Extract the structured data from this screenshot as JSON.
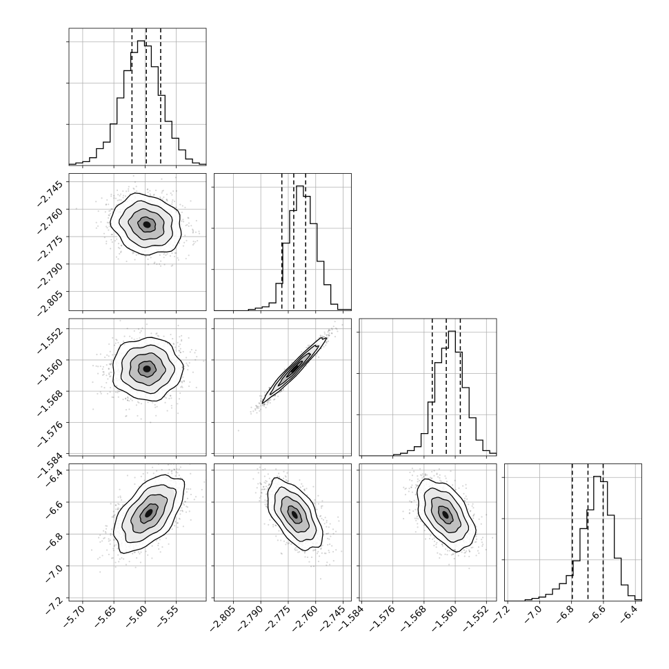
{
  "chart_data": {
    "type": "corner",
    "n_params": 4,
    "params": [
      {
        "ticks": [
          -5.7,
          -5.65,
          -5.6,
          -5.55
        ],
        "tick_labels": [
          "−5.70",
          "−5.65",
          "−5.60",
          "−5.55"
        ],
        "range": [
          -5.722,
          -5.502
        ]
      },
      {
        "ticks": [
          -2.805,
          -2.79,
          -2.775,
          -2.76,
          -2.745
        ],
        "tick_labels": [
          "−2.805",
          "−2.790",
          "−2.775",
          "−2.760",
          "−2.745"
        ],
        "range": [
          -2.8155,
          -2.7405
        ]
      },
      {
        "ticks": [
          -1.584,
          -1.576,
          -1.568,
          -1.56,
          -1.552
        ],
        "tick_labels": [
          "−1.584",
          "−1.576",
          "−1.568",
          "−1.560",
          "−1.552"
        ],
        "range": [
          -1.5846,
          -1.5494
        ]
      },
      {
        "ticks": [
          -7.2,
          -7.0,
          -6.8,
          -6.6,
          -6.4
        ],
        "tick_labels": [
          "−7.2",
          "−7.0",
          "−6.8",
          "−6.6",
          "−6.4"
        ],
        "range": [
          -7.22,
          -6.36
        ]
      }
    ],
    "histograms": [
      {
        "counts": [
          1,
          2,
          3,
          6,
          13,
          18,
          32,
          52,
          73,
          87,
          96,
          92,
          76,
          54,
          34,
          21,
          12,
          5,
          2,
          1
        ],
        "quantiles": [
          -5.621,
          -5.598,
          -5.575
        ]
      },
      {
        "counts": [
          0,
          0,
          0,
          0,
          0,
          1,
          2,
          3,
          6,
          21,
          52,
          77,
          96,
          88,
          67,
          38,
          20,
          5,
          1,
          1
        ],
        "quantiles": [
          -2.7785,
          -2.772,
          -2.7655
        ]
      },
      {
        "counts": [
          0,
          0,
          0,
          0,
          0,
          1,
          2,
          4,
          7,
          17,
          41,
          71,
          82,
          95,
          79,
          52,
          29,
          12,
          4,
          2
        ],
        "quantiles": [
          -1.5659,
          -1.5623,
          -1.5587
        ]
      },
      {
        "counts": [
          0,
          0,
          0,
          1,
          2,
          3,
          5,
          9,
          13,
          19,
          30,
          54,
          68,
          93,
          89,
          64,
          32,
          12,
          4,
          1
        ],
        "quantiles": [
          -6.795,
          -6.697,
          -6.602
        ]
      }
    ],
    "pairs": [
      {
        "x_param": 0,
        "y_param": 1,
        "mean": [
          -5.597,
          -2.7685
        ],
        "sd": [
          0.028,
          0.0082
        ],
        "corr": -0.15
      },
      {
        "x_param": 0,
        "y_param": 2,
        "mean": [
          -5.597,
          -1.5623
        ],
        "sd": [
          0.028,
          0.004
        ],
        "corr": 0.0
      },
      {
        "x_param": 1,
        "y_param": 2,
        "mean": [
          -2.7715,
          -1.5623
        ],
        "sd": [
          0.0085,
          0.0041
        ],
        "corr": 0.97
      },
      {
        "x_param": 0,
        "y_param": 3,
        "mean": [
          -5.594,
          -6.67
        ],
        "sd": [
          0.028,
          0.12
        ],
        "corr": 0.55
      },
      {
        "x_param": 1,
        "y_param": 3,
        "mean": [
          -2.7715,
          -6.68
        ],
        "sd": [
          0.0075,
          0.11
        ],
        "corr": -0.55
      },
      {
        "x_param": 2,
        "y_param": 3,
        "mean": [
          -1.5625,
          -6.68
        ],
        "sd": [
          0.0037,
          0.11
        ],
        "corr": -0.5
      }
    ],
    "contour_levels_sigma": [
      0.5,
      1.0,
      1.5,
      2.0
    ],
    "grid": true,
    "xlabel": "",
    "ylabel": "",
    "title": ""
  }
}
